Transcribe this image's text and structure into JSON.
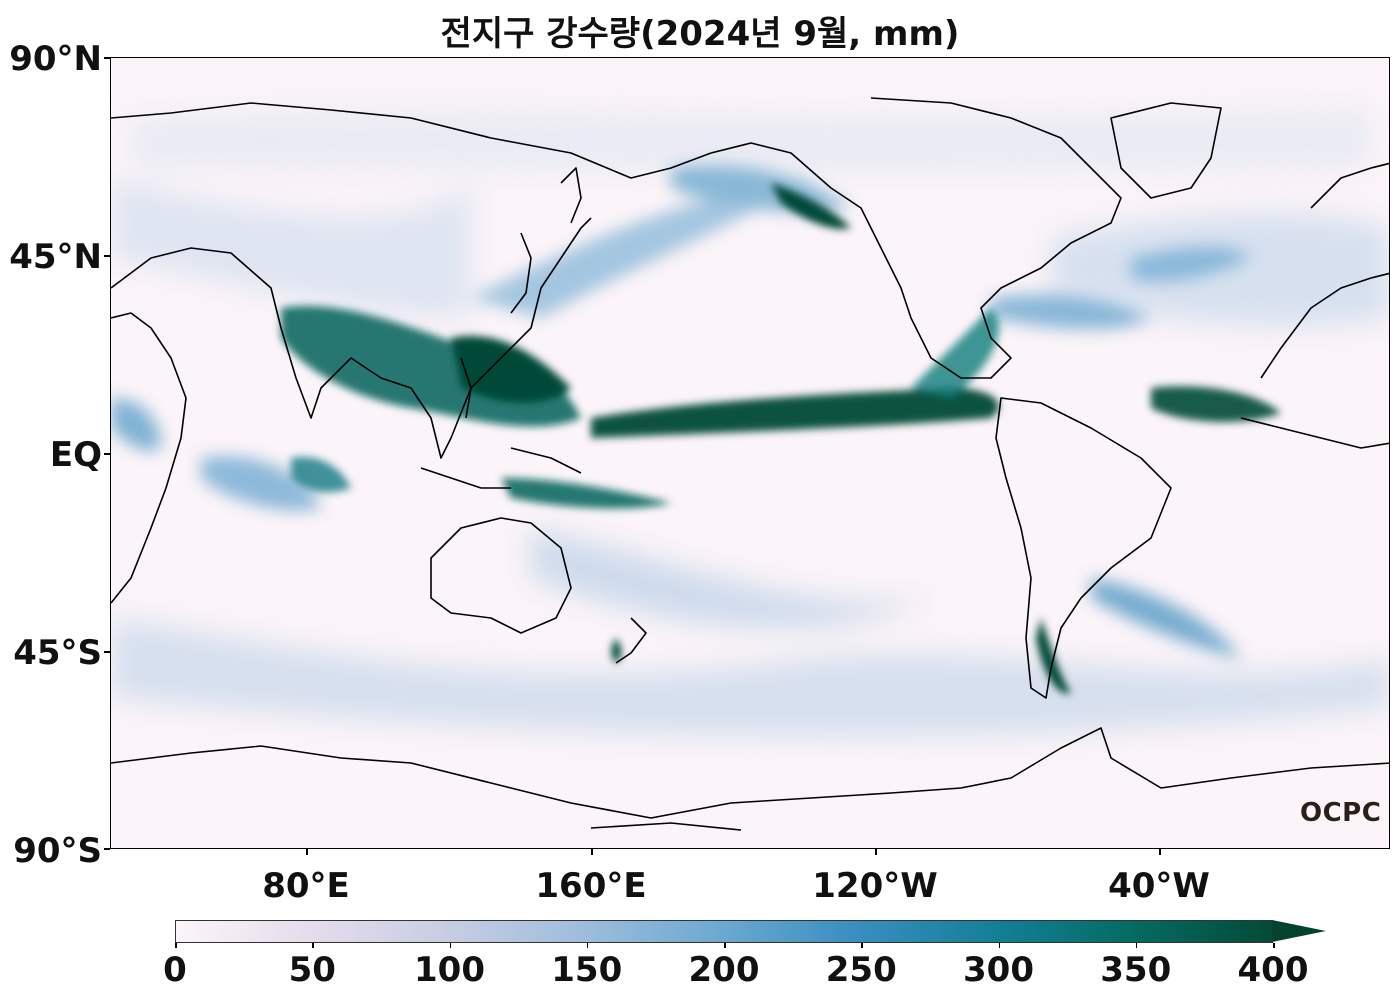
{
  "title": "전지구 강수량(2024년 9월, mm)",
  "map": {
    "projection": "plate-carree",
    "central_longitude": "160°E",
    "lat_labels": [
      "90°N",
      "45°N",
      "EQ",
      "45°S",
      "90°S"
    ],
    "lon_labels": [
      "80°E",
      "160°E",
      "120°W",
      "40°W"
    ],
    "palette": "PuBuGn",
    "colors": {
      "low": "#fcf5fa",
      "mid": "#3a8ec0",
      "high": "#034a37",
      "coastline": "#000000"
    }
  },
  "watermark": "OCPC",
  "colorbar": {
    "ticks": [
      "0",
      "50",
      "100",
      "150",
      "200",
      "250",
      "300",
      "350",
      "400"
    ],
    "min": 0,
    "max": 400,
    "extend": "max",
    "unit": "mm"
  }
}
